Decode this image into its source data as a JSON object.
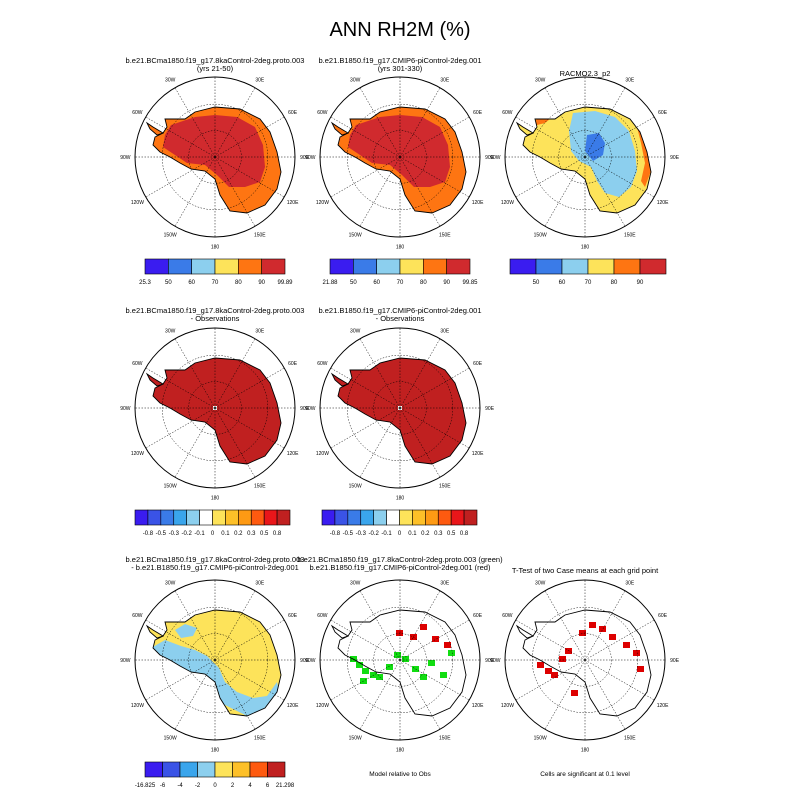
{
  "title": "ANN RH2M (%)",
  "colors": {
    "rh_scale": [
      "#3a1cf0",
      "#3a7be8",
      "#8ccfee",
      "#fde35a",
      "#fe7512",
      "#d02a2e"
    ],
    "diff_scale": [
      "#3a1cf0",
      "#3a53e6",
      "#3a7be8",
      "#3aa5ec",
      "#8ccfee",
      "#ffffff",
      "#fde35a",
      "#fdc028",
      "#fe9a14",
      "#fe5a10",
      "#e9161a",
      "#c02020"
    ],
    "land": "#d02a2e",
    "sig_green": "#11dd11",
    "sig_red": "#dd0000"
  },
  "chart_data": [
    {
      "type": "heatmap",
      "title": "b.e21.BCma1850.f19_g17.8kaControl-2deg.proto.003",
      "subtitle": "(yrs 21-50)",
      "lon_labels": [
        "30W",
        "30E",
        "60W",
        "60E",
        "90W",
        "90E",
        "120W",
        "120E",
        "150W",
        "150E",
        "180"
      ],
      "colorbar": {
        "labels": [
          "25.3",
          "50",
          "60",
          "70",
          "80",
          "90",
          "99.89"
        ]
      }
    },
    {
      "type": "heatmap",
      "title": "b.e21.B1850.f19_g17.CMIP6-piControl-2deg.001",
      "subtitle": "(yrs 301-330)",
      "lon_labels": [
        "30W",
        "30E",
        "60W",
        "60E",
        "90W",
        "90E",
        "120W",
        "120E",
        "150W",
        "150E",
        "180"
      ],
      "colorbar": {
        "labels": [
          "21.88",
          "50",
          "60",
          "70",
          "80",
          "90",
          "99.85"
        ]
      }
    },
    {
      "type": "heatmap",
      "title": "RACMO2.3_p2",
      "subtitle": "",
      "lon_labels": [
        "30W",
        "30E",
        "60W",
        "60E",
        "90W",
        "90E",
        "120W",
        "120E",
        "150W",
        "150E",
        "180"
      ],
      "colorbar": {
        "labels": [
          "50",
          "60",
          "70",
          "80",
          "90"
        ]
      }
    },
    {
      "type": "heatmap",
      "title": "b.e21.BCma1850.f19_g17.8kaControl-2deg.proto.003",
      "subtitle": "- Observations",
      "lon_labels": [
        "30W",
        "30E",
        "60W",
        "60E",
        "90W",
        "90E",
        "120W",
        "120E",
        "150W",
        "150E",
        "180"
      ],
      "colorbar": {
        "labels": [
          "-0.8",
          "-0.5",
          "-0.3",
          "-0.2",
          "-0.1",
          "0",
          "0.1",
          "0.2",
          "0.3",
          "0.5",
          "0.8"
        ]
      }
    },
    {
      "type": "heatmap",
      "title": "b.e21.B1850.f19_g17.CMIP6-piControl-2deg.001",
      "subtitle": "- Observations",
      "lon_labels": [
        "30W",
        "30E",
        "60W",
        "60E",
        "90W",
        "90E",
        "120W",
        "120E",
        "150W",
        "150E",
        "180"
      ],
      "colorbar": {
        "labels": [
          "-0.8",
          "-0.5",
          "-0.3",
          "-0.2",
          "-0.1",
          "0",
          "0.1",
          "0.2",
          "0.3",
          "0.5",
          "0.8"
        ]
      }
    },
    {
      "type": "heatmap",
      "title": "b.e21.BCma1850.f19_g17.8kaControl-2deg.proto.003",
      "subtitle": "- b.e21.B1850.f19_g17.CMIP6-piControl-2deg.001",
      "lon_labels": [
        "30W",
        "30E",
        "60W",
        "60E",
        "90W",
        "90E",
        "120W",
        "120E",
        "150W",
        "150E",
        "180"
      ],
      "colorbar": {
        "labels": [
          "-16.825",
          "-6",
          "-4",
          "-2",
          "0",
          "2",
          "4",
          "6",
          "21.298"
        ]
      }
    },
    {
      "type": "heatmap",
      "title": "b.e21.BCma1850.f19_g17.8kaControl-2deg.proto.003 (green)",
      "subtitle": "b.e21.B1850.f19_g17.CMIP6-piControl-2deg.001 (red)",
      "lon_labels": [
        "30W",
        "30E",
        "60W",
        "60E",
        "90W",
        "90E",
        "120W",
        "120E",
        "150W",
        "150E",
        "180"
      ],
      "footer": "Model relative to Obs"
    },
    {
      "type": "heatmap",
      "title": "T-Test of two Case means at each grid point",
      "subtitle": "",
      "lon_labels": [
        "30W",
        "30E",
        "60W",
        "60E",
        "90W",
        "90E",
        "120W",
        "120E",
        "150W",
        "150E",
        "180"
      ],
      "footer": "Cells are significant at 0.1 level"
    }
  ]
}
